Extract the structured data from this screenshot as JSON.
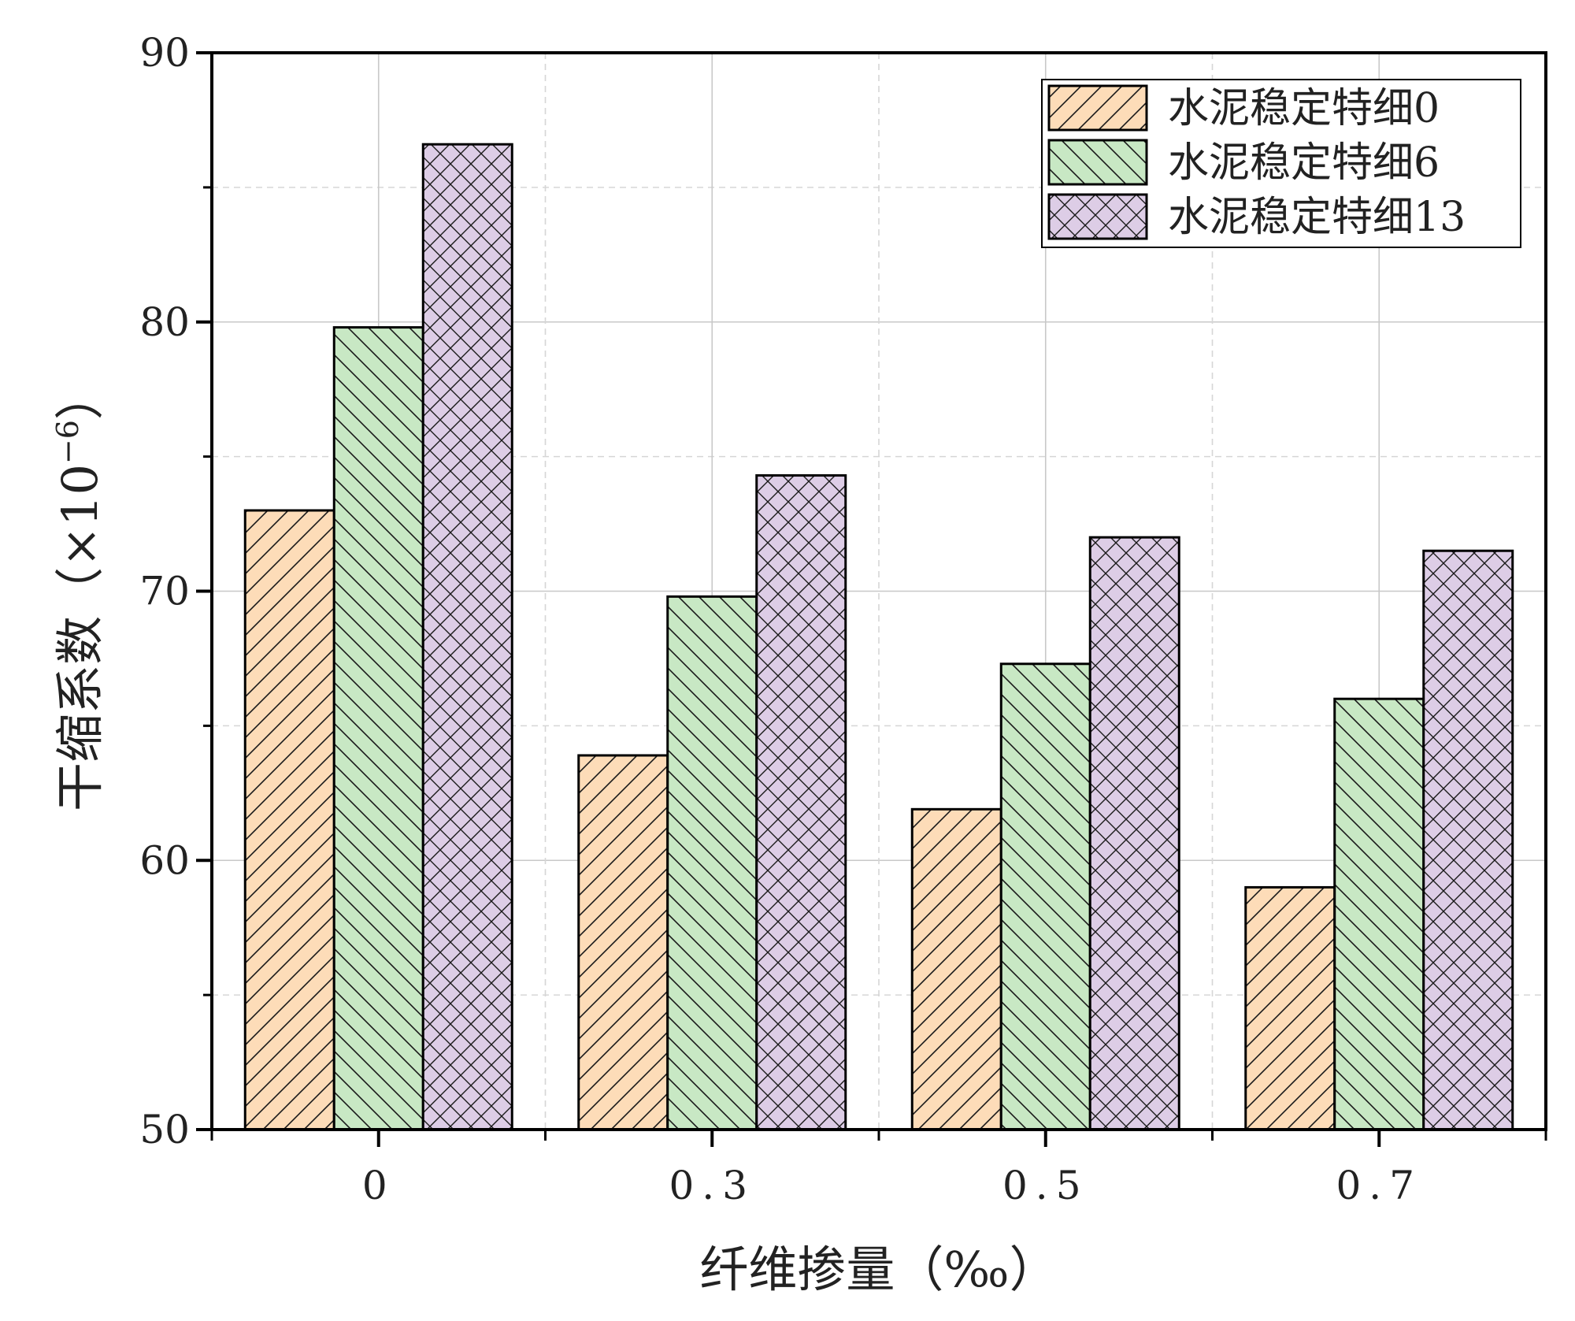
{
  "chart_data": {
    "type": "bar",
    "xlabel": "纤维掺量（‰）",
    "ylabel_main": "干缩系数（×10",
    "ylabel_sup": "−6",
    "ylabel_close": "）",
    "categories": [
      "0",
      "0.3",
      "0.5",
      "0.7"
    ],
    "series": [
      {
        "name": "水泥稳定特细0",
        "values": [
          73.0,
          63.9,
          61.9,
          59.0
        ],
        "color": "#fddcb8",
        "pattern": "diagonal-up"
      },
      {
        "name": "水泥稳定特细6",
        "values": [
          79.8,
          69.8,
          67.3,
          66.0
        ],
        "color": "#c8e8c4",
        "pattern": "diagonal-down"
      },
      {
        "name": "水泥稳定特细13",
        "values": [
          86.6,
          74.3,
          72.0,
          71.5
        ],
        "color": "#ddcde6",
        "pattern": "crosshatch"
      }
    ],
    "ylim": [
      50,
      90
    ],
    "yticks": [
      "50",
      "60",
      "70",
      "80",
      "90"
    ],
    "grid": true,
    "legend_position": "top-right"
  }
}
